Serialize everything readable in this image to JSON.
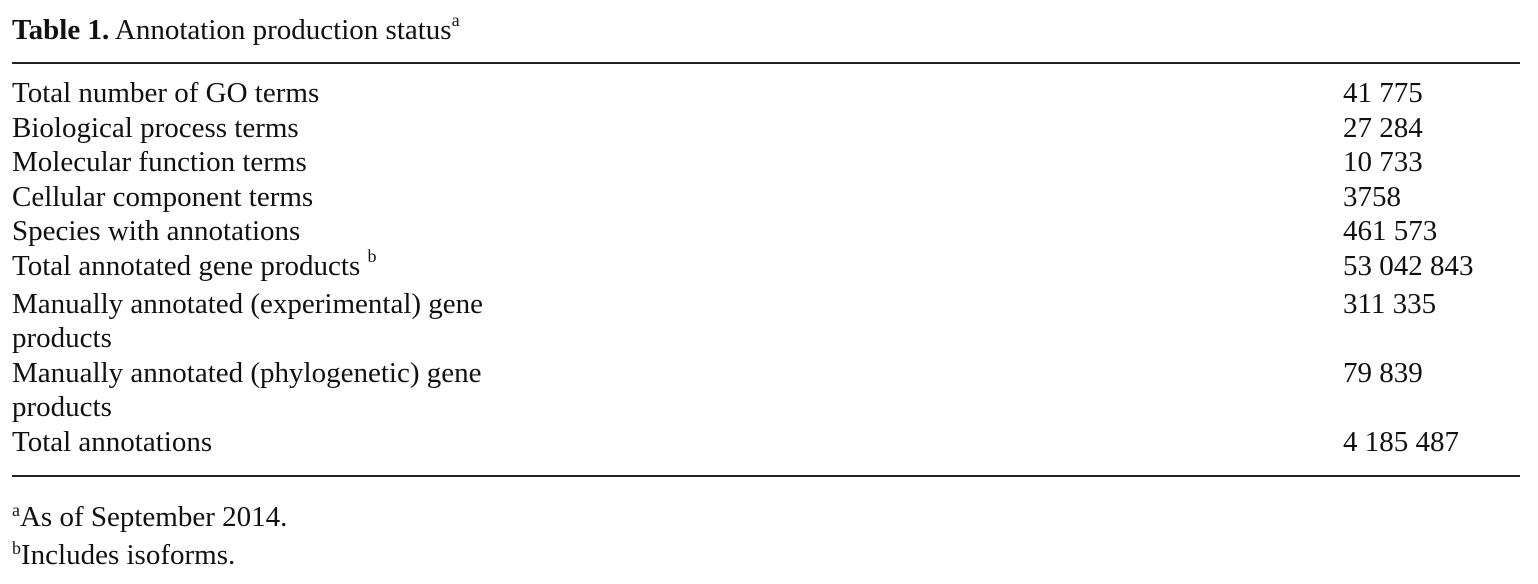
{
  "caption": {
    "label": "Table 1.",
    "title": "Annotation production status",
    "marker": "a"
  },
  "rows": [
    {
      "label": "Total number of GO terms",
      "marker": "",
      "value": "41 775"
    },
    {
      "label": "Biological process terms",
      "marker": "",
      "value": "27 284"
    },
    {
      "label": "Molecular function terms",
      "marker": "",
      "value": "10 733"
    },
    {
      "label": "Cellular component terms",
      "marker": "",
      "value": "3758"
    },
    {
      "label": "Species with annotations",
      "marker": "",
      "value": "461 573"
    },
    {
      "label": "Total annotated gene products",
      "marker": "b",
      "value": "53 042 843"
    },
    {
      "label": "Manually annotated (experimental) gene products",
      "marker": "",
      "value": "311 335"
    },
    {
      "label": "Manually annotated (phylogenetic) gene products",
      "marker": "",
      "value": "79 839"
    },
    {
      "label": "Total annotations",
      "marker": "",
      "value": "4 185 487"
    }
  ],
  "footnotes": [
    {
      "marker": "a",
      "text": "As of September 2014."
    },
    {
      "marker": "b",
      "text": "Includes isoforms."
    }
  ]
}
